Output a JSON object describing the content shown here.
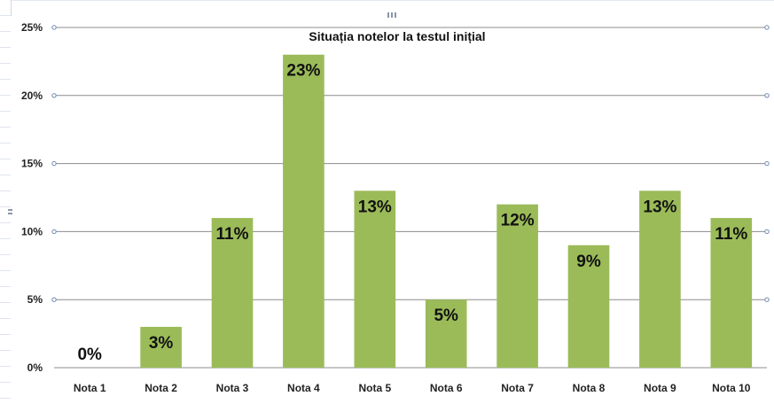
{
  "chart_data": {
    "type": "bar",
    "title": "Situația notelor la testul inițial",
    "categories": [
      "Nota 1",
      "Nota 2",
      "Nota 3",
      "Nota 4",
      "Nota 5",
      "Nota 6",
      "Nota 7",
      "Nota 8",
      "Nota 9",
      "Nota 10"
    ],
    "values": [
      0,
      3,
      11,
      23,
      13,
      5,
      12,
      9,
      13,
      11
    ],
    "data_labels": [
      "0%",
      "3%",
      "11%",
      "23%",
      "13%",
      "5%",
      "12%",
      "9%",
      "13%",
      "11%"
    ],
    "y_ticks": [
      "0%",
      "5%",
      "10%",
      "15%",
      "20%",
      "25%"
    ],
    "ylim": [
      0,
      25
    ],
    "unit": "%",
    "grid": true,
    "legend": "none",
    "colors": {
      "bar": "#9bbb59",
      "grid": "#8c8c8c"
    }
  }
}
